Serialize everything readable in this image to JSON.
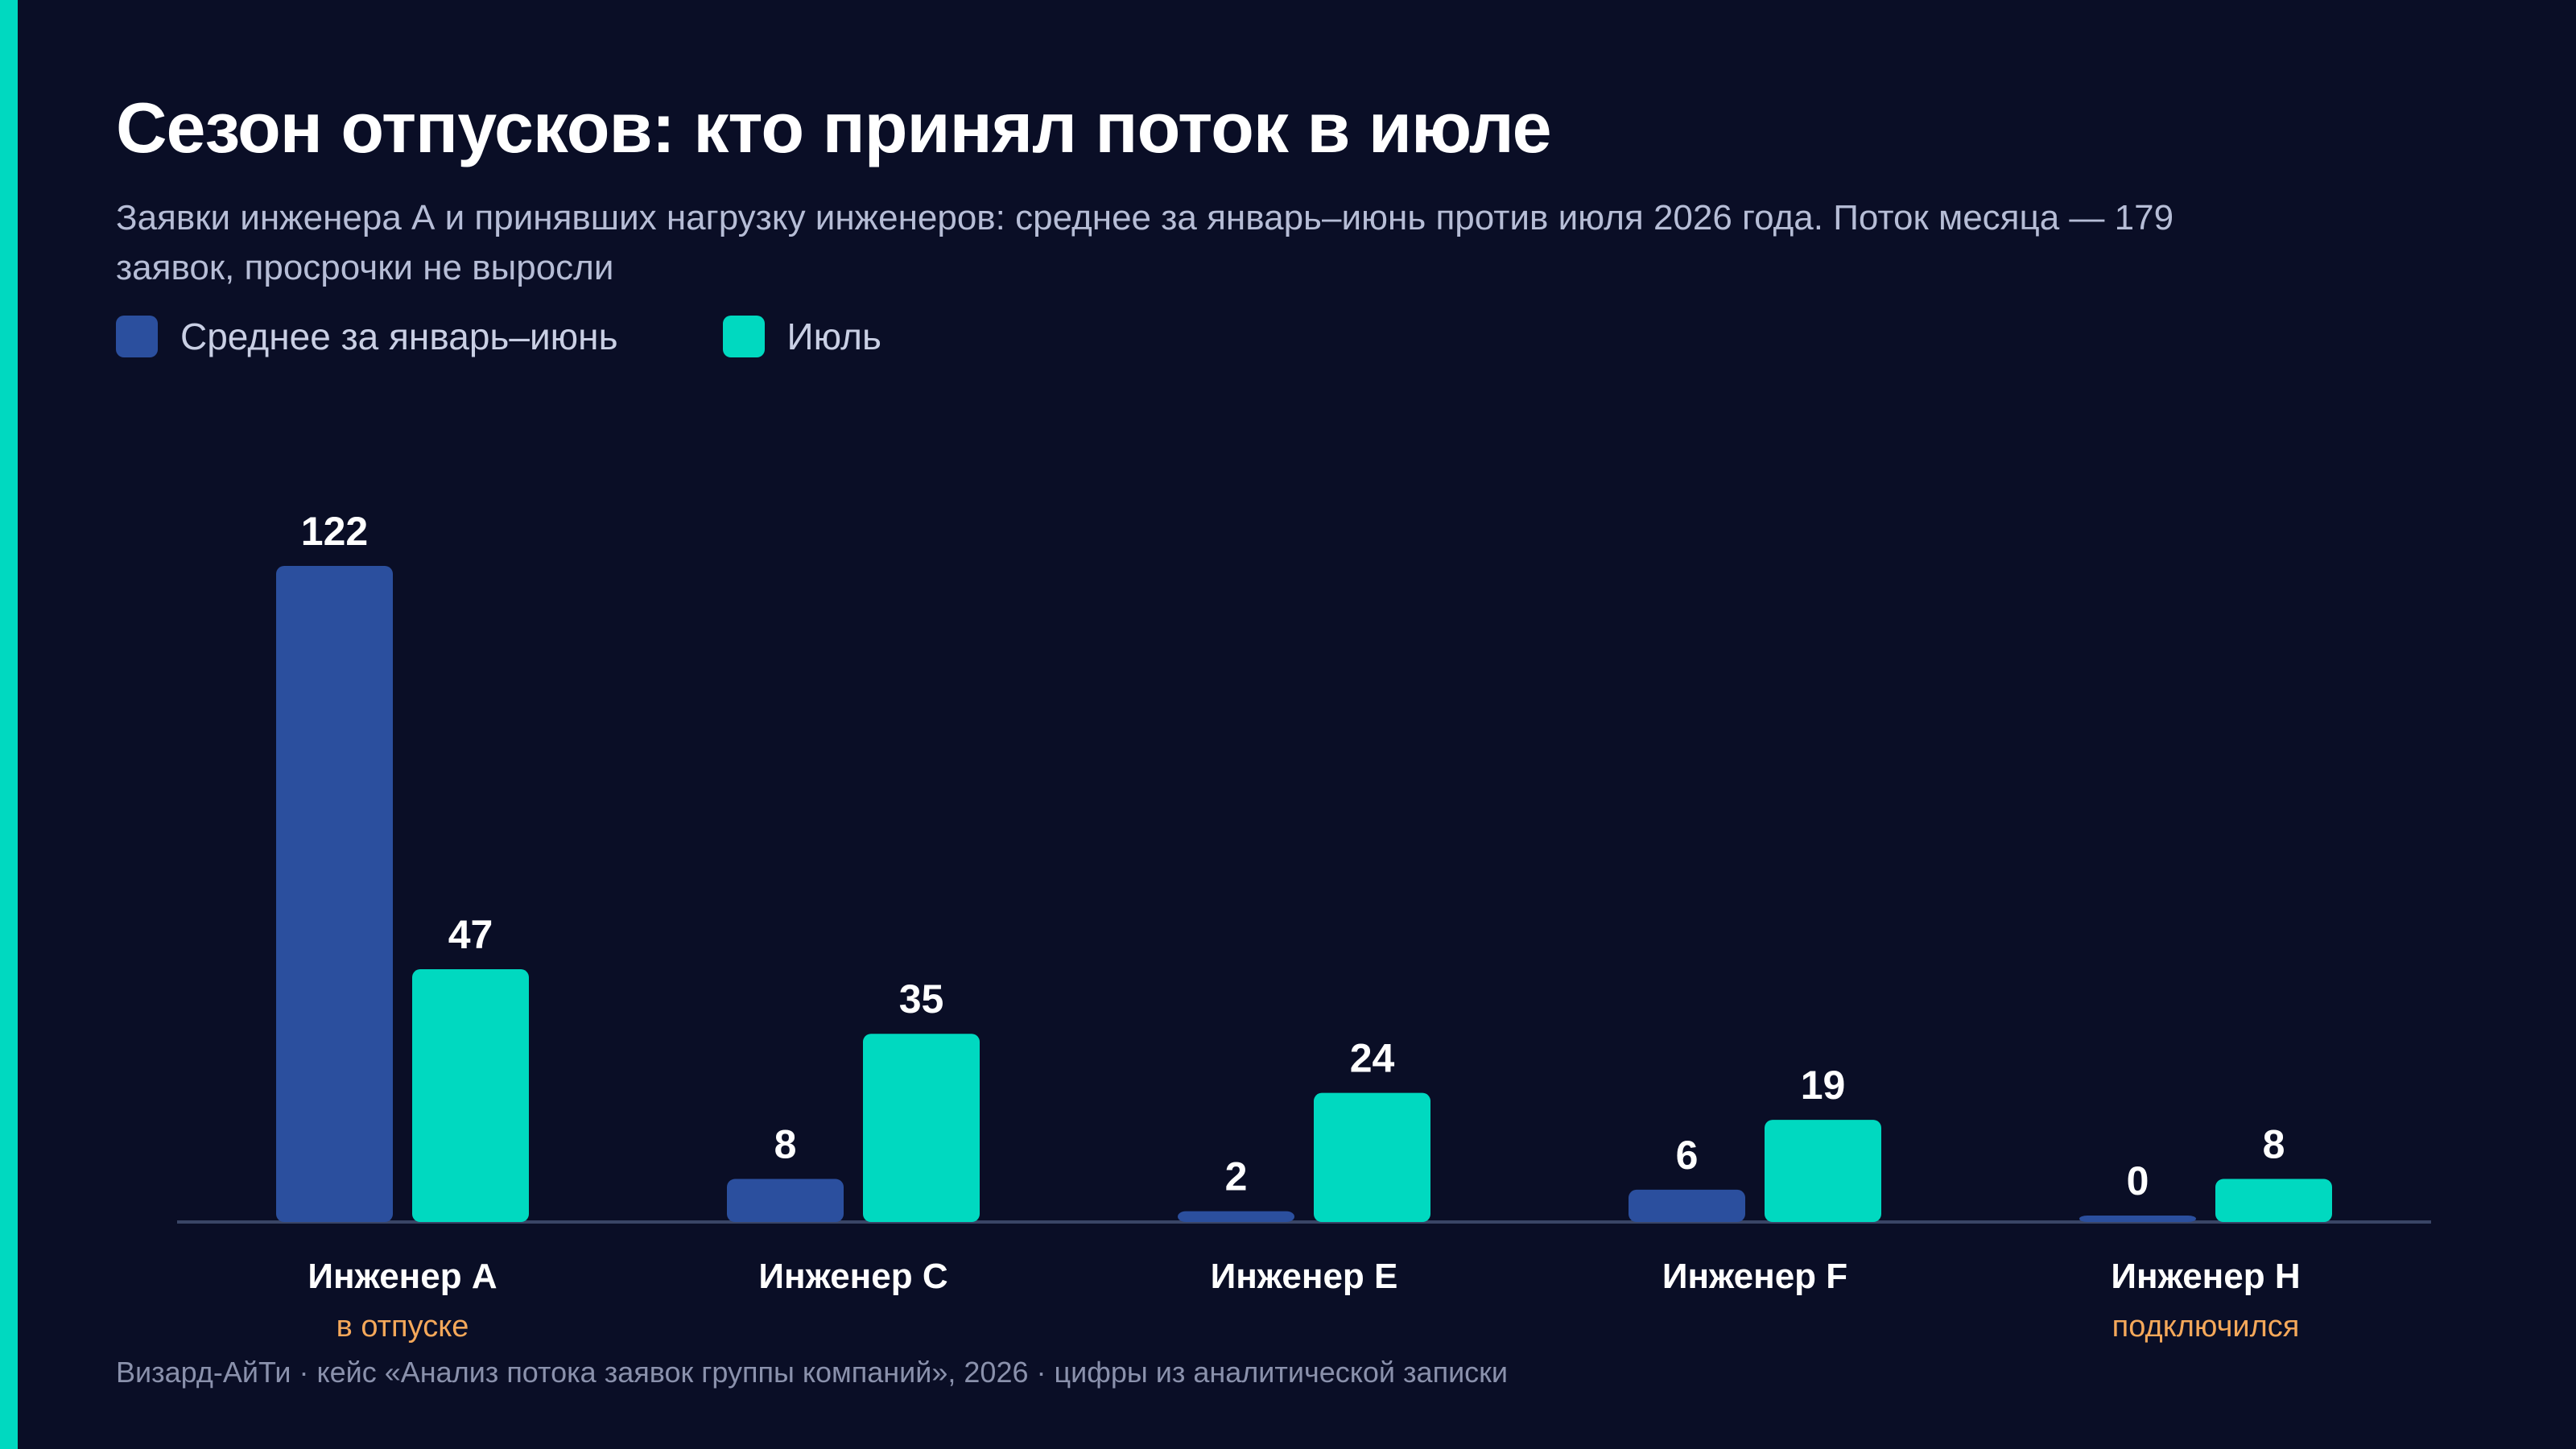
{
  "title": "Сезон отпусков: кто принял поток в июле",
  "subtitle": "Заявки инженера А и принявших нагрузку инженеров: среднее за январь–июнь против июля 2026 года. Поток месяца — 179 заявок, просрочки не выросли",
  "footer": "Визард-АйТи · кейс «Анализ потока заявок группы компаний», 2026 · цифры из аналитической записки",
  "colors": {
    "background": "#0a0e26",
    "accent": "#00d9c0",
    "series_avg": "#2b4f9e",
    "series_july": "#00d9c0",
    "note": "#f5a85a"
  },
  "chart_data": {
    "type": "bar",
    "title": "Сезон отпусков: кто принял поток в июле",
    "categories": [
      "Инженер A",
      "Инженер C",
      "Инженер E",
      "Инженер F",
      "Инженер H"
    ],
    "category_notes": [
      "в отпуске",
      "",
      "",
      "",
      "подключился"
    ],
    "series": [
      {
        "name": "Среднее за январь–июнь",
        "color": "#2b4f9e",
        "values": [
          122,
          8,
          2,
          6,
          0
        ]
      },
      {
        "name": "Июль",
        "color": "#00d9c0",
        "values": [
          47,
          35,
          24,
          19,
          8
        ]
      }
    ],
    "xlabel": "",
    "ylabel": "",
    "ylim": [
      0,
      122
    ],
    "grid": false,
    "legend_position": "top-left"
  }
}
